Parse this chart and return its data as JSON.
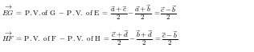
{
  "line1_left": "$\\overrightarrow{EG} = \\mathrm{P.V.of\\ G} - \\mathrm{P.V.\\ of\\ E} = $",
  "line1_right": "$\\dfrac{\\vec{a}+\\vec{c}}{2} - \\dfrac{\\vec{a}+\\vec{b}}{2} = \\dfrac{\\vec{c}-\\vec{b}}{2}$",
  "line2_left": "$\\overrightarrow{HF} = \\mathrm{P.V.\\ of\\ F} - \\mathrm{P.V.\\ of\\ H} = $",
  "line2_right": "$\\dfrac{\\vec{c}+\\vec{d}}{2} - \\dfrac{\\vec{b}+\\vec{d}}{2} = \\dfrac{\\vec{c}-\\vec{b}}{2}$",
  "full_line1": "$\\overrightarrow{EG}\\; =\\; \\mathrm{P.V.of\\ G} \\;-\\; \\mathrm{P.V.\\ of\\ E} \\;=\\; \\dfrac{\\vec{a}+\\vec{c}}{2}-\\dfrac{\\vec{a}+\\vec{b}}{2}\\; =\\dfrac{\\vec{c}-\\vec{b}}{2}$",
  "full_line2": "$\\overrightarrow{HF}\\; =\\; \\mathrm{P.V.\\ of\\ F} \\;-\\; \\mathrm{P.V.\\ of\\ H} \\;=\\; \\dfrac{\\vec{c}+\\vec{d}}{2}-\\dfrac{\\vec{b}+\\vec{d}}{2}\\; =\\dfrac{\\vec{c}-\\vec{b}}{2}$",
  "bg_color": "#ffffff",
  "text_color": "#000000",
  "fontsize": 6.5,
  "fig_width": 3.16,
  "fig_height": 0.65,
  "dpi": 100
}
